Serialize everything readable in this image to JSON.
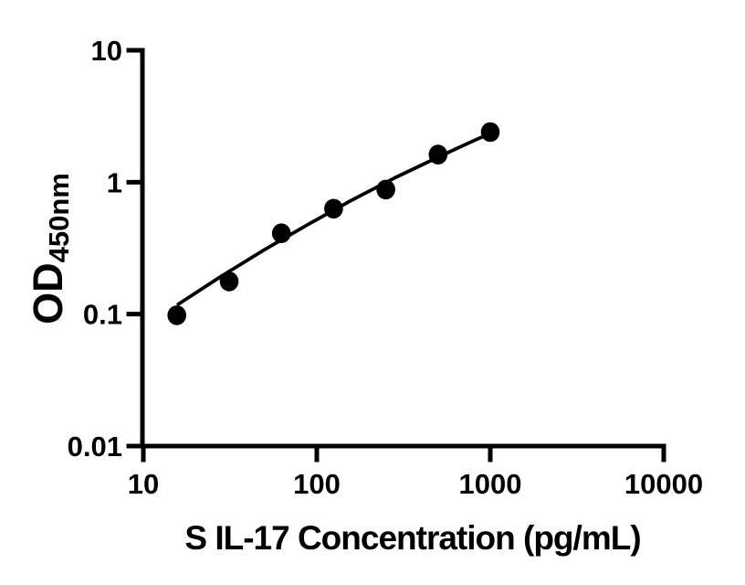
{
  "colors": {
    "foreground": "#000000",
    "background": "#ffffff"
  },
  "chart_data": {
    "type": "scatter",
    "xlabel": "S IL-17 Concentration (pg/mL)",
    "ylabel_main": "OD",
    "ylabel_sub": "450nm",
    "x_scale": "log",
    "y_scale": "log",
    "xlim": [
      10,
      10000
    ],
    "ylim": [
      0.01,
      10
    ],
    "grid": false,
    "legend": false,
    "x_ticks": [
      {
        "value": 10,
        "label": "10"
      },
      {
        "value": 100,
        "label": "100"
      },
      {
        "value": 1000,
        "label": "1000"
      },
      {
        "value": 10000,
        "label": "10000"
      }
    ],
    "y_ticks": [
      {
        "value": 0.01,
        "label": "0.01"
      },
      {
        "value": 0.1,
        "label": "0.1"
      },
      {
        "value": 1,
        "label": "1"
      },
      {
        "value": 10,
        "label": "10"
      }
    ],
    "series": [
      {
        "marker": "filled-circle",
        "color": "#000000",
        "points": [
          {
            "x": 15.6,
            "y": 0.098
          },
          {
            "x": 31.25,
            "y": 0.177
          },
          {
            "x": 62.5,
            "y": 0.41
          },
          {
            "x": 125,
            "y": 0.63
          },
          {
            "x": 250,
            "y": 0.88
          },
          {
            "x": 500,
            "y": 1.62
          },
          {
            "x": 1000,
            "y": 2.4
          }
        ]
      }
    ],
    "fit_line": {
      "color": "#000000",
      "points": [
        {
          "x": 15.9,
          "y": 0.119
        },
        {
          "x": 28.2,
          "y": 0.194
        },
        {
          "x": 50.1,
          "y": 0.309
        },
        {
          "x": 89.1,
          "y": 0.479
        },
        {
          "x": 158,
          "y": 0.727
        },
        {
          "x": 282,
          "y": 1.08
        },
        {
          "x": 501,
          "y": 1.55
        },
        {
          "x": 794,
          "y": 2.05
        },
        {
          "x": 1059,
          "y": 2.42
        }
      ]
    }
  }
}
